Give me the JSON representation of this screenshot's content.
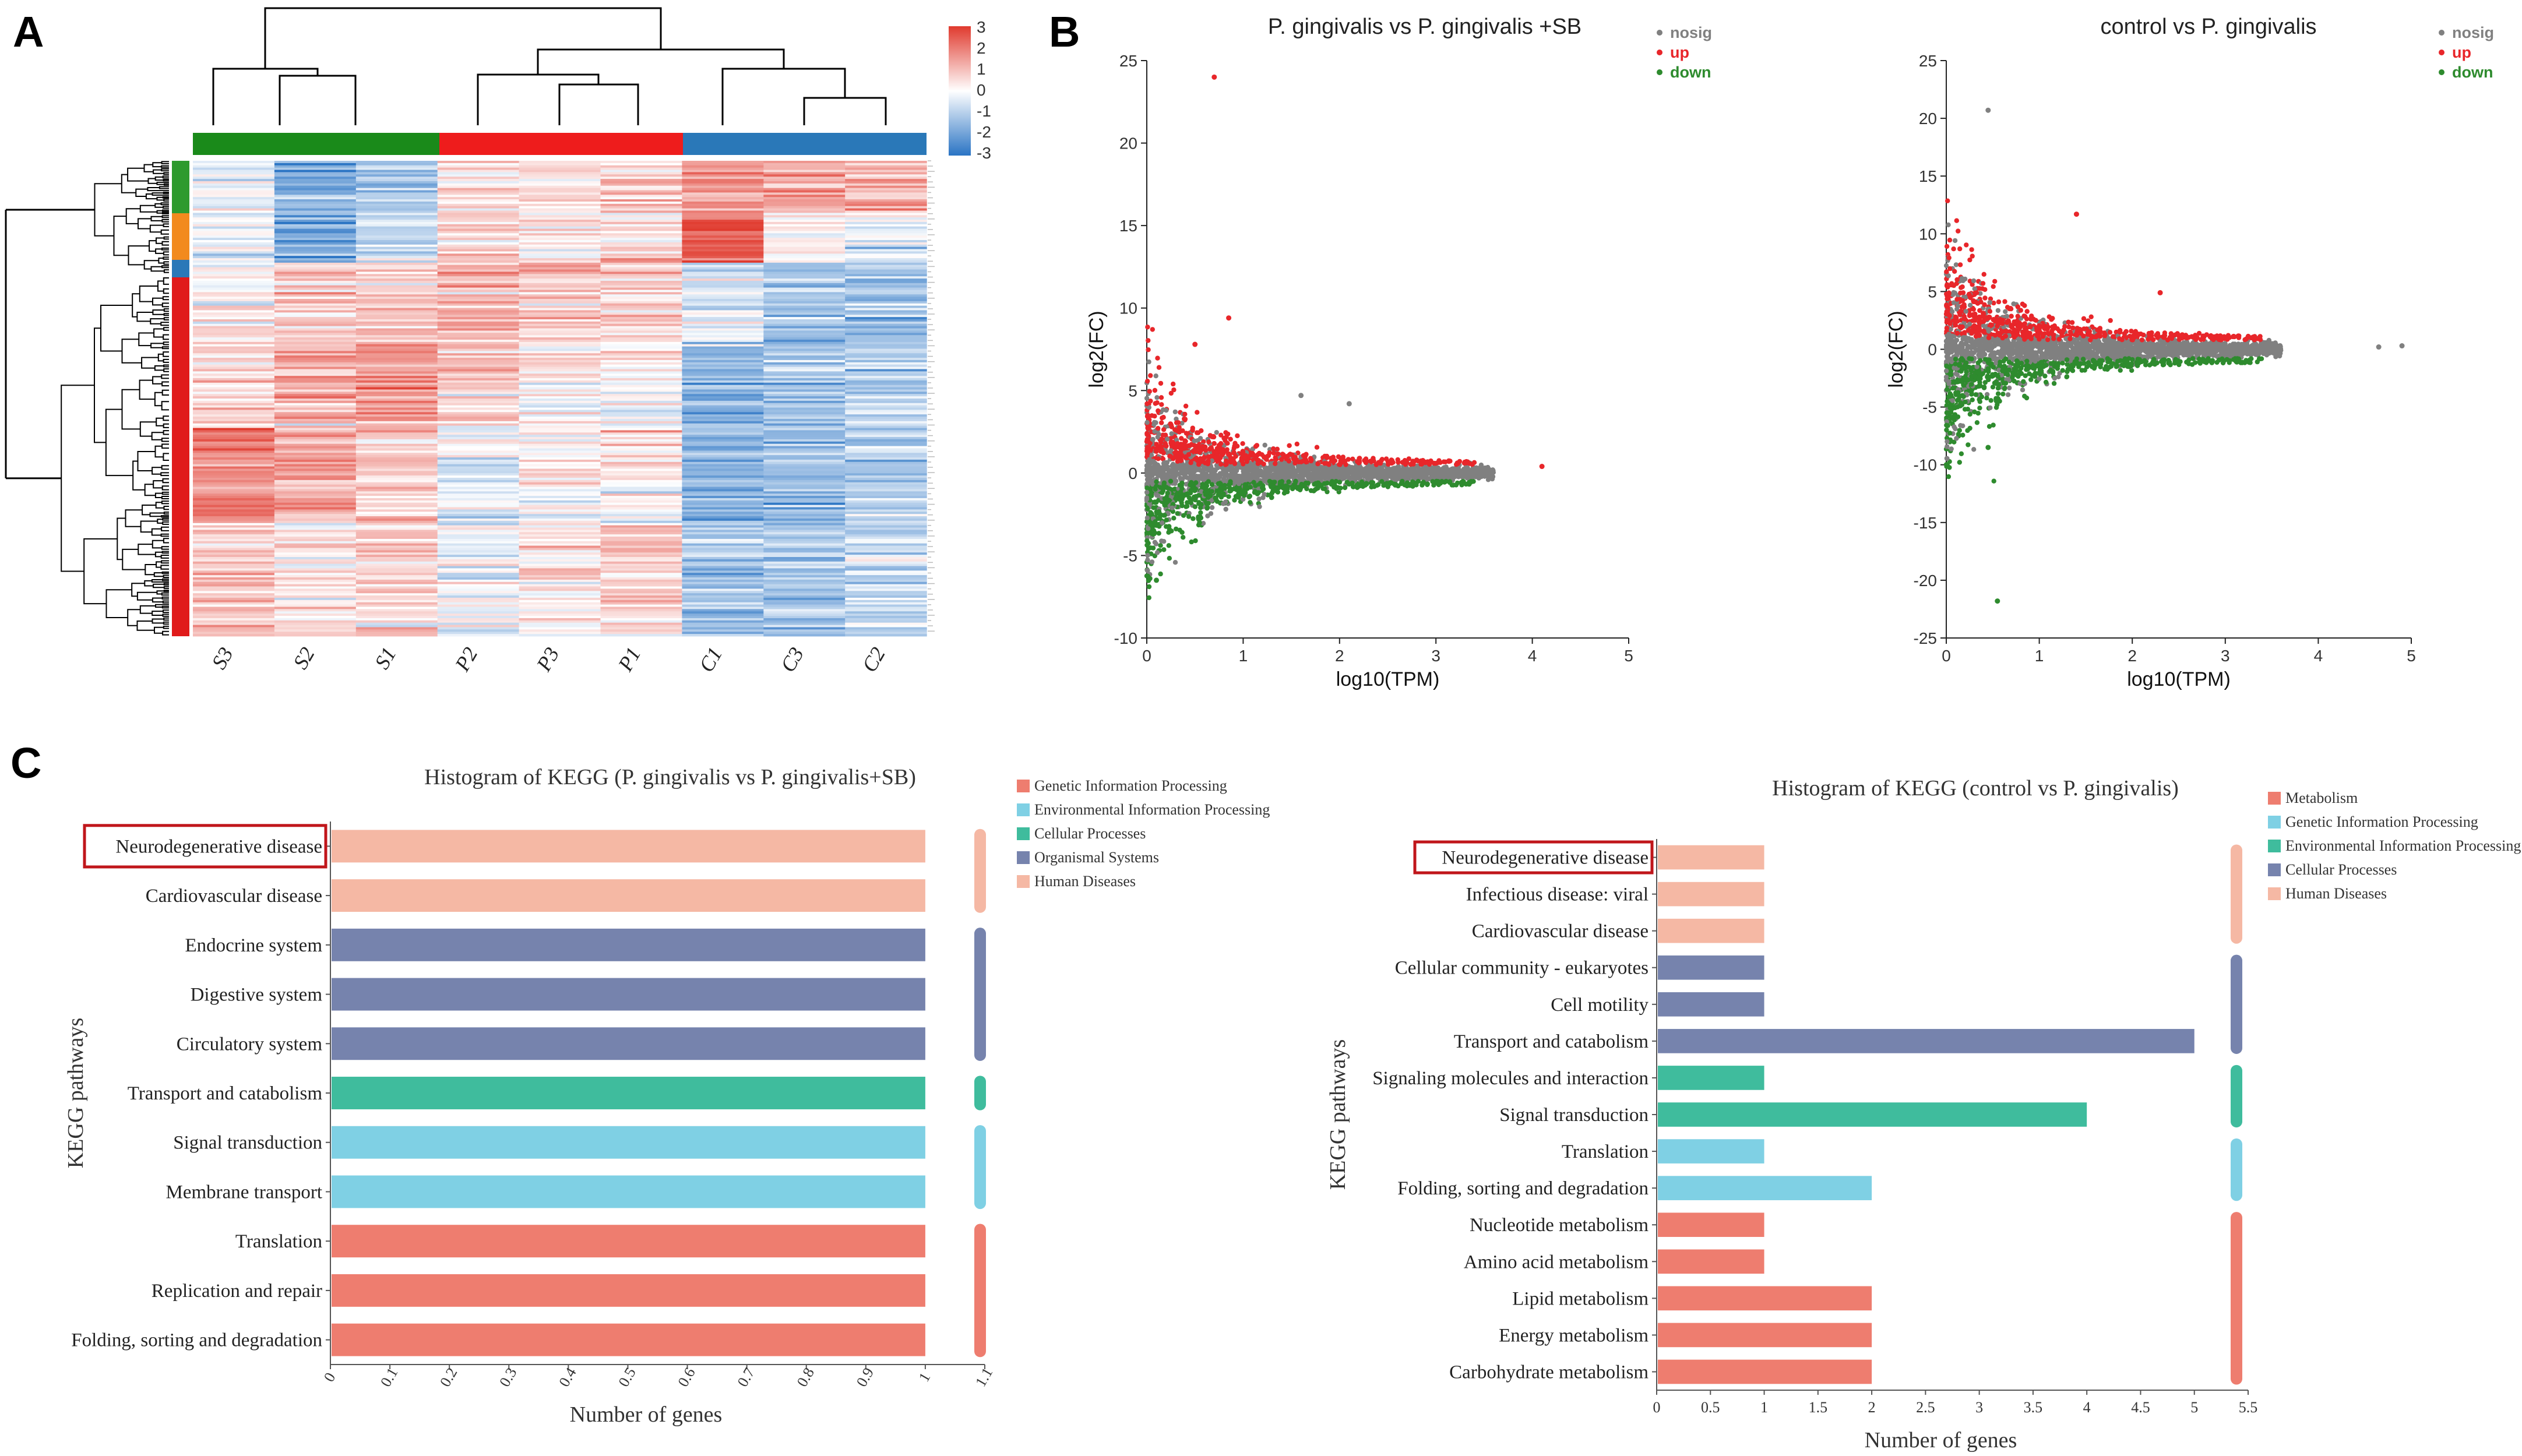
{
  "panels": {
    "A": "A",
    "B": "B",
    "C": "C"
  },
  "heatmap": {
    "columns": [
      "S3",
      "S2",
      "S1",
      "P2",
      "P3",
      "P1",
      "C1",
      "C3",
      "C2"
    ],
    "group_colors": [
      "#1a8a1a",
      "#ee1c1c",
      "#2a78b8"
    ],
    "legend_ticks": [
      "3",
      "2",
      "1",
      "0",
      "-1",
      "-2",
      "-3"
    ],
    "legend_colors": {
      "high": "#e03a2e",
      "mid": "#ffffff",
      "low": "#2a74c4"
    }
  },
  "chart_data": [
    {
      "type": "scatter",
      "title": "P. gingivalis vs P. gingivalis +SB",
      "xlabel": "log10(TPM)",
      "ylabel": "log2(FC)",
      "xlim": [
        0,
        5
      ],
      "ylim": [
        -10,
        25
      ],
      "xticks": [
        "0",
        "1",
        "2",
        "3",
        "4",
        "5"
      ],
      "yticks": [
        "25",
        "20",
        "15",
        "10",
        "5",
        "0",
        "-5",
        "-10"
      ],
      "legend": [
        {
          "label": "nosig",
          "color": "#808080"
        },
        {
          "label": "up",
          "color": "#e8262a"
        },
        {
          "label": "down",
          "color": "#2e8b2e"
        }
      ],
      "outliers": [
        {
          "x": 0.7,
          "y": 24.0,
          "group": "up"
        },
        {
          "x": 0.85,
          "y": 9.4,
          "group": "up"
        },
        {
          "x": 0.5,
          "y": 7.8,
          "group": "up"
        },
        {
          "x": 2.1,
          "y": 4.2,
          "group": "nosig"
        },
        {
          "x": 1.6,
          "y": 4.7,
          "group": "nosig"
        },
        {
          "x": 4.1,
          "y": 0.4,
          "group": "up"
        },
        {
          "x": 0.1,
          "y": -6.5,
          "group": "down"
        }
      ]
    },
    {
      "type": "scatter",
      "title": "control vs P. gingivalis",
      "xlabel": "log10(TPM)",
      "ylabel": "log2(FC)",
      "xlim": [
        0,
        5
      ],
      "ylim": [
        -25,
        25
      ],
      "xticks": [
        "0",
        "1",
        "2",
        "3",
        "4",
        "5"
      ],
      "yticks": [
        "25",
        "20",
        "15",
        "10",
        "5",
        "0",
        "-5",
        "-10",
        "-15",
        "-20",
        "-25"
      ],
      "legend": [
        {
          "label": "nosig",
          "color": "#808080"
        },
        {
          "label": "up",
          "color": "#e8262a"
        },
        {
          "label": "down",
          "color": "#2e8b2e"
        }
      ],
      "outliers": [
        {
          "x": 0.45,
          "y": 20.7,
          "group": "nosig"
        },
        {
          "x": 1.4,
          "y": 11.7,
          "group": "up"
        },
        {
          "x": 2.3,
          "y": 4.9,
          "group": "up"
        },
        {
          "x": 0.55,
          "y": -21.8,
          "group": "down"
        },
        {
          "x": 0.45,
          "y": -8.5,
          "group": "down"
        },
        {
          "x": 4.9,
          "y": 0.3,
          "group": "nosig"
        },
        {
          "x": 4.65,
          "y": 0.2,
          "group": "nosig"
        }
      ]
    },
    {
      "type": "bar",
      "orientation": "horizontal",
      "title": "Histogram of KEGG (P. gingivalis vs P. gingivalis+SB)",
      "xlabel": "Number of genes",
      "ylabel": "KEGG pathways",
      "xlim": [
        0,
        1.1
      ],
      "xticks": [
        "0",
        "0.1",
        "0.2",
        "0.3",
        "0.4",
        "0.5",
        "0.6",
        "0.7",
        "0.8",
        "0.9",
        "1",
        "1.1"
      ],
      "highlight": "Neurodegenerative disease",
      "legend": [
        {
          "label": "Genetic Information Processing",
          "color": "#ee7d6f"
        },
        {
          "label": "Environmental Information Processing",
          "color": "#7fd0e4"
        },
        {
          "label": "Cellular Processes",
          "color": "#3fbc9d"
        },
        {
          "label": "Organismal Systems",
          "color": "#7683ad"
        },
        {
          "label": "Human Diseases",
          "color": "#f5b8a4"
        }
      ],
      "categories": [
        "Neurodegenerative disease",
        "Cardiovascular disease",
        "Endocrine system",
        "Digestive system",
        "Circulatory system",
        "Transport and catabolism",
        "Signal transduction",
        "Membrane transport",
        "Translation",
        "Replication and repair",
        "Folding, sorting and degradation"
      ],
      "values": [
        1,
        1,
        1,
        1,
        1,
        1,
        1,
        1,
        1,
        1,
        1
      ],
      "groups": [
        "Human Diseases",
        "Human Diseases",
        "Organismal Systems",
        "Organismal Systems",
        "Organismal Systems",
        "Cellular Processes",
        "Environmental Information Processing",
        "Environmental Information Processing",
        "Genetic Information Processing",
        "Genetic Information Processing",
        "Genetic Information Processing"
      ]
    },
    {
      "type": "bar",
      "orientation": "horizontal",
      "title": "Histogram of KEGG (control vs P. gingivalis)",
      "xlabel": "Number of genes",
      "ylabel": "KEGG pathways",
      "xlim": [
        0,
        5.5
      ],
      "xticks": [
        "0",
        "0.5",
        "1",
        "1.5",
        "2",
        "2.5",
        "3",
        "3.5",
        "4",
        "4.5",
        "5",
        "5.5"
      ],
      "highlight": "Neurodegenerative disease",
      "legend": [
        {
          "label": "Metabolism",
          "color": "#ee7d6f"
        },
        {
          "label": "Genetic Information Processing",
          "color": "#7fd0e4"
        },
        {
          "label": "Environmental Information Processing",
          "color": "#3fbc9d"
        },
        {
          "label": "Cellular Processes",
          "color": "#7683ad"
        },
        {
          "label": "Human Diseases",
          "color": "#f5b8a4"
        }
      ],
      "categories": [
        "Neurodegenerative disease",
        "Infectious disease: viral",
        "Cardiovascular disease",
        "Cellular community - eukaryotes",
        "Cell motility",
        "Transport and catabolism",
        "Signaling molecules and interaction",
        "Signal transduction",
        "Translation",
        "Folding, sorting and degradation",
        "Nucleotide metabolism",
        "Amino acid metabolism",
        "Lipid metabolism",
        "Energy metabolism",
        "Carbohydrate metabolism"
      ],
      "values": [
        1,
        1,
        1,
        1,
        1,
        5,
        1,
        4,
        1,
        2,
        1,
        1,
        2,
        2,
        2
      ],
      "groups": [
        "Human Diseases",
        "Human Diseases",
        "Human Diseases",
        "Cellular Processes",
        "Cellular Processes",
        "Cellular Processes",
        "Environmental Information Processing",
        "Environmental Information Processing",
        "Genetic Information Processing",
        "Genetic Information Processing",
        "Metabolism",
        "Metabolism",
        "Metabolism",
        "Metabolism",
        "Metabolism"
      ]
    }
  ]
}
